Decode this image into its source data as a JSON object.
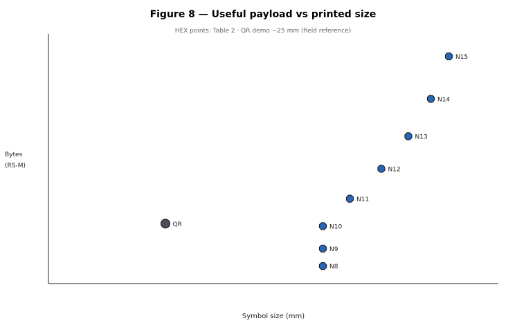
{
  "chart_data": {
    "type": "scatter",
    "title": "Figure 8 — Useful payload vs printed size",
    "subtitle": "HEX points: Table 2 · QR demo ~25 mm (field reference)",
    "xlabel": "Symbol size (mm)",
    "ylabel_lines": [
      "Bytes",
      "(RS-M)"
    ],
    "xlim": [
      0,
      100
    ],
    "ylim": [
      0,
      100
    ],
    "grid": false,
    "series": [
      {
        "color": "#2a66b8",
        "points": [
          {
            "label": "N8",
            "x": 61,
            "y": 7
          },
          {
            "label": "N9",
            "x": 61,
            "y": 14
          },
          {
            "label": "N10",
            "x": 61,
            "y": 23
          },
          {
            "label": "N11",
            "x": 67,
            "y": 34
          },
          {
            "label": "N12",
            "x": 74,
            "y": 46
          },
          {
            "label": "N13",
            "x": 80,
            "y": 59
          },
          {
            "label": "N14",
            "x": 85,
            "y": 74
          },
          {
            "label": "N15",
            "x": 89,
            "y": 91
          }
        ]
      },
      {
        "color": "#4a4f57",
        "points": [
          {
            "label": "QR",
            "x": 26,
            "y": 24
          }
        ]
      }
    ]
  }
}
